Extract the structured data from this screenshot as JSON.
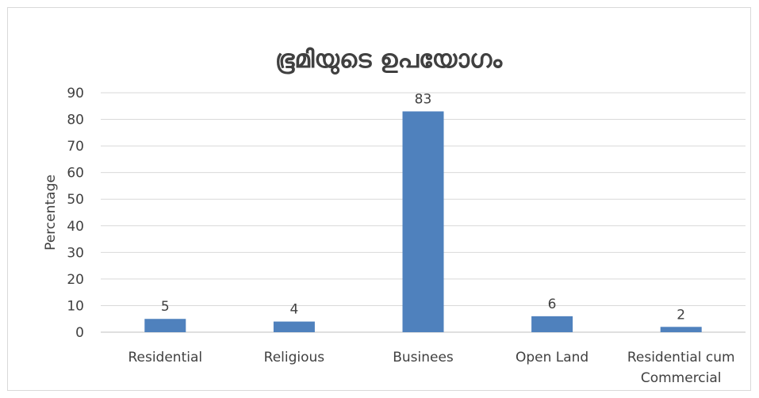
{
  "chart_data": {
    "type": "bar",
    "title": "ഭൂമിയുടെ  ഉപയോഗം",
    "xlabel": "",
    "ylabel": "Percentage",
    "categories": [
      "Residential",
      "Religious",
      "Businees",
      "Open Land",
      "Residential cum Commercial"
    ],
    "category_lines": [
      [
        "Residential"
      ],
      [
        "Religious"
      ],
      [
        "Businees"
      ],
      [
        "Open Land"
      ],
      [
        "Residential cum",
        "Commercial"
      ]
    ],
    "values": [
      5,
      4,
      83,
      6,
      2
    ],
    "data_labels": [
      "5",
      "4",
      "83",
      "6",
      "2"
    ],
    "ylim": [
      0,
      90
    ],
    "yticks": [
      0,
      10,
      20,
      30,
      40,
      50,
      60,
      70,
      80,
      90
    ],
    "grid": true,
    "legend": "none",
    "colors": {
      "bar": "#4f81bd",
      "grid": "#d9d9d9",
      "text": "#404040",
      "title": "#404040"
    }
  }
}
